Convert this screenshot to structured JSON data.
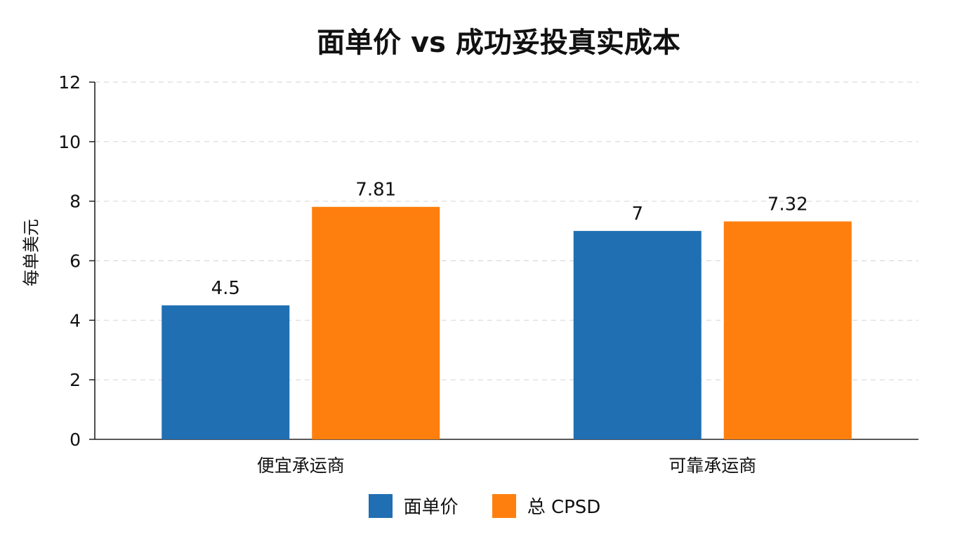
{
  "chart_data": {
    "type": "bar",
    "title": "面单价 vs 成功妥投真实成本",
    "xlabel": "",
    "ylabel": "每单美元",
    "categories": [
      "便宜承运商",
      "可靠承运商"
    ],
    "series": [
      {
        "name": "面单价",
        "values": [
          4.5,
          7
        ],
        "labels": [
          "4.5",
          "7"
        ],
        "color": "#1f6fb2"
      },
      {
        "name": "总 CPSD",
        "values": [
          7.81,
          7.32
        ],
        "labels": [
          "7.81",
          "7.32"
        ],
        "color": "#ff7f0e"
      }
    ],
    "ylim": [
      0,
      12
    ],
    "yticks": [
      0,
      2,
      4,
      6,
      8,
      10,
      12
    ],
    "ytick_labels": [
      "0",
      "2",
      "4",
      "6",
      "8",
      "10",
      "12"
    ],
    "grid": "horizontal-dashed",
    "legend": "bottom-center"
  }
}
